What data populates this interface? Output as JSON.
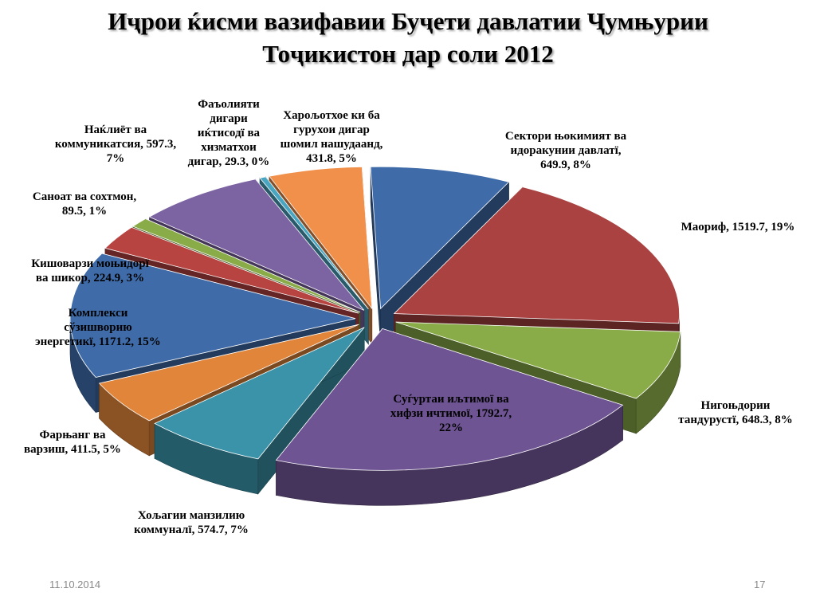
{
  "slide": {
    "title_line1": "Иҷрои ќисми вазифавии Буҷети давлатии Ҷумњурии",
    "title_line2": "Тоҷикистон дар соли 2012",
    "date": "11.10.2014",
    "page_number": "17"
  },
  "chart_data": {
    "type": "pie",
    "style": "3d-exploded",
    "title": "Иҷрои ќисми вазифавии Буҷети давлатии Ҷумњурии Тоҷикистон дар соли 2012",
    "slices": [
      {
        "label": "Сектори њокимият ва идоракунии давлатї, 649.9, 8%",
        "category": "Сектори њокимият ва идоракунии давлатї",
        "value": 649.9,
        "percent": 8,
        "color": "#3f6ba8"
      },
      {
        "label": "Маориф, 1519.7, 19%",
        "category": "Маориф",
        "value": 1519.7,
        "percent": 19,
        "color": "#a94241"
      },
      {
        "label": "Нигоњдории тандурустї, 648.3, 8%",
        "category": "Нигоњдории тандурустї",
        "value": 648.3,
        "percent": 8,
        "color": "#8aac48"
      },
      {
        "label": "Суѓуртаи иљтимої ва хифзи ичтимої, 1792.7, 22%",
        "category": "Суѓуртаи иљтимої ва хифзи ичтимої",
        "value": 1792.7,
        "percent": 22,
        "color": "#6f5493"
      },
      {
        "label": "Хољагии манзилию коммуналї, 574.7, 7%",
        "category": "Хољагии манзилию коммуналї",
        "value": 574.7,
        "percent": 7,
        "color": "#3a93a8"
      },
      {
        "label": "Фарњанг ва варзиш, 411.5, 5%",
        "category": "Фарњанг ва варзиш",
        "value": 411.5,
        "percent": 5,
        "color": "#e0853a"
      },
      {
        "label": "Комплекси сўзишворию энергетикї, 1171.2, 15%",
        "category": "Комплекси сўзишворию энергетикї",
        "value": 1171.2,
        "percent": 15,
        "color": "#3f6ba8"
      },
      {
        "label": "Кишоварзи моњидорї ва шикор, 224.9, 3%",
        "category": "Кишоварзи моњидорї ва шикор",
        "value": 224.9,
        "percent": 3,
        "color": "#b84442"
      },
      {
        "label": "Саноат ва сохтмон, 89.5, 1%",
        "category": "Саноат ва сохтмон",
        "value": 89.5,
        "percent": 1,
        "color": "#8aac48"
      },
      {
        "label": "Наќлиёт ва коммуникатсия, 597.3, 7%",
        "category": "Наќлиёт ва коммуникатсия",
        "value": 597.3,
        "percent": 7,
        "color": "#7c63a2"
      },
      {
        "label": "Фаъолияти дигари иќтисодї ва хизматхои дигар, 29.3, 0%",
        "category": "Фаъолияти дигари иќтисодї ва хизматхои дигар",
        "value": 29.3,
        "percent": 0,
        "color": "#4aa6c0"
      },
      {
        "label": "Харољотхое ки ба гурухои дигар шомил нашудаанд, 431.8, 5%",
        "category": "Харољотхое ки ба гурухои дигар шомил нашудаанд",
        "value": 431.8,
        "percent": 5,
        "color": "#f0904a"
      }
    ],
    "data_labels": [
      "Сектори њокимият ва\nидоракунии давлатї,\n649.9, 8%",
      "Маориф, 1519.7, 19%",
      "Нигоњдории\nтандурустї, 648.3, 8%",
      "Суѓуртаи иљтимої ва\nхифзи ичтимої, 1792.7,\n22%",
      "Хољагии манзилию\nкоммуналї, 574.7, 7%",
      "Фарњанг ва\nварзиш, 411.5, 5%",
      "Комплекси\nсўзишворию\nэнергетикї, 1171.2, 15%",
      "Кишоварзи моњидорї\nва шикор, 224.9, 3%",
      "Саноат ва сохтмон,\n89.5, 1%",
      "Наќлиёт ва\nкоммуникатсия, 597.3,\n7%",
      "Фаъолияти\nдигари\nиќтисодї ва\nхизматхои\nдигар, 29.3, 0%",
      "Харољотхое ки ба\nгурухои дигар\nшомил нашудаанд,\n431.8, 5%"
    ]
  }
}
